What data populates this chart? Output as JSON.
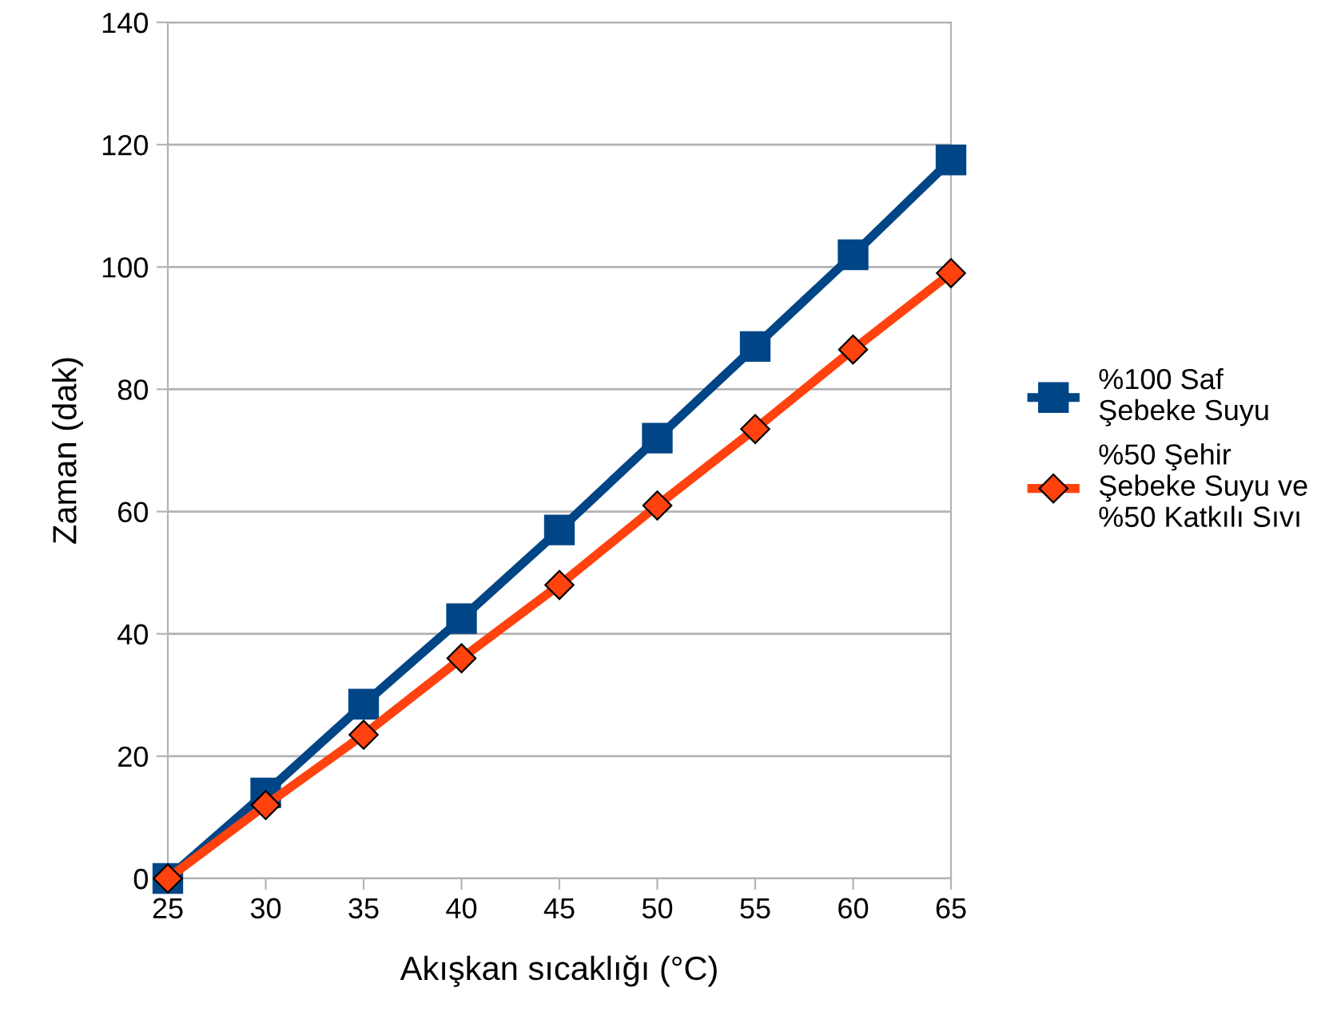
{
  "chart_data": {
    "type": "line",
    "xlabel": "Akışkan sıcaklığı (°C)",
    "ylabel": "Zaman (dak)",
    "x": [
      25,
      30,
      35,
      40,
      45,
      50,
      55,
      60,
      65
    ],
    "xlim": [
      25,
      65
    ],
    "xticks": [
      25,
      30,
      35,
      40,
      45,
      50,
      55,
      60,
      65
    ],
    "ylim": [
      0,
      140
    ],
    "yticks": [
      0,
      20,
      40,
      60,
      80,
      100,
      120,
      140
    ],
    "grid": "y",
    "legend": "right",
    "series": [
      {
        "name": "%100 Saf\nŞebeke Suyu",
        "color": "#004586",
        "marker": "square",
        "values": [
          0,
          14,
          28.5,
          42.5,
          57,
          72,
          87,
          102,
          117.5
        ]
      },
      {
        "name": "%50 Şehir\nŞebeke Suyu ve\n%50 Katkılı Sıvı",
        "color": "#ff420e",
        "marker": "diamond",
        "values": [
          0,
          12,
          23.5,
          36,
          48,
          61,
          73.5,
          86.5,
          99
        ]
      }
    ]
  }
}
